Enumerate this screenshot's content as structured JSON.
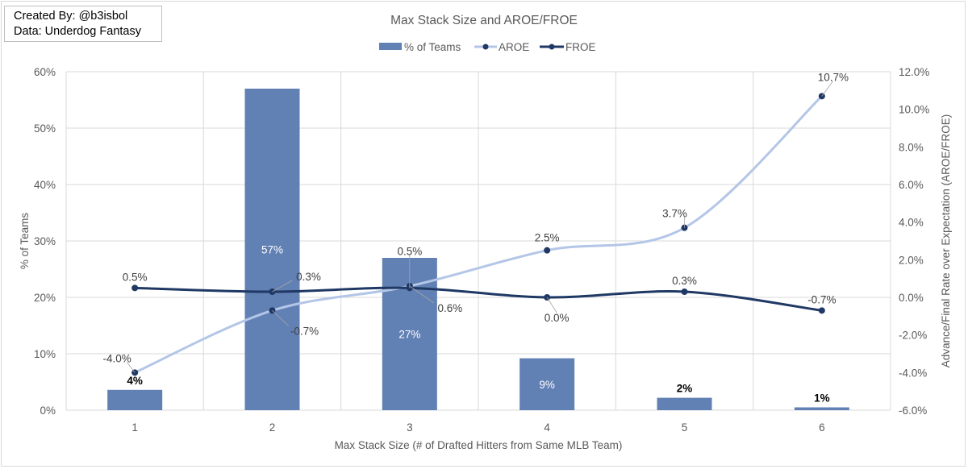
{
  "credit": {
    "line1": "Created By: @b3isbol",
    "line2": "Data: Underdog Fantasy"
  },
  "chart_data": {
    "type": "bar",
    "combo": "bar + line (secondary axis)",
    "title": "Max Stack Size and AROE/FROE",
    "xlabel": "Max Stack Size (# of Drafted Hitters from Same MLB Team)",
    "ylabel": "% of Teams",
    "y2label": "Advance/Final Rate over Expectation (AROE/FROE)",
    "categories": [
      "1",
      "2",
      "3",
      "4",
      "5",
      "6"
    ],
    "ylim": [
      0,
      60
    ],
    "y_ticks": [
      "0%",
      "10%",
      "20%",
      "30%",
      "40%",
      "50%",
      "60%"
    ],
    "y2lim": [
      -6.0,
      12.0
    ],
    "y2_ticks": [
      "-6.0%",
      "-4.0%",
      "-2.0%",
      "0.0%",
      "2.0%",
      "4.0%",
      "6.0%",
      "8.0%",
      "10.0%",
      "12.0%"
    ],
    "grid": true,
    "legend_position": "top",
    "series": [
      {
        "name": "% of Teams",
        "type": "bar",
        "axis": "left",
        "color": "#6180b4",
        "values": [
          3.6,
          57,
          27,
          9.2,
          2.2,
          0.5
        ],
        "labels": [
          "4%",
          "57%",
          "27%",
          "9%",
          "2%",
          "1%"
        ]
      },
      {
        "name": "AROE",
        "type": "line",
        "axis": "right",
        "smooth": true,
        "color": "#b4c6e7",
        "marker_color": "#1f3864",
        "values": [
          -4.0,
          -0.7,
          0.6,
          2.5,
          3.7,
          10.7
        ],
        "labels": [
          "-4.0%",
          "-0.7%",
          "0.6%",
          "2.5%",
          "3.7%",
          "10.7%"
        ]
      },
      {
        "name": "FROE",
        "type": "line",
        "axis": "right",
        "smooth": true,
        "color": "#1f3864",
        "marker_color": "#1f3864",
        "values": [
          0.5,
          0.3,
          0.5,
          0.0,
          0.3,
          -0.7
        ],
        "labels": [
          "0.5%",
          "0.3%",
          "0.5%",
          "0.0%",
          "0.3%",
          "-0.7%"
        ]
      }
    ]
  }
}
